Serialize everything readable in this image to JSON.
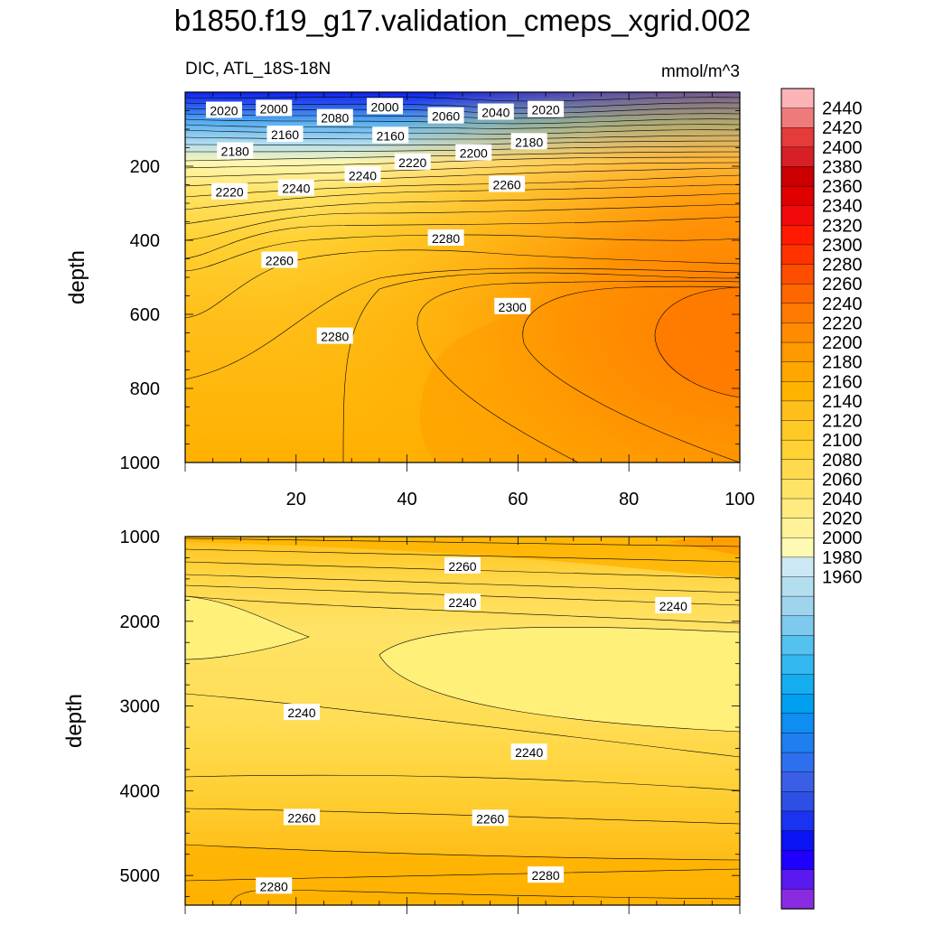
{
  "chart_data": {
    "type": "contour",
    "title": "b1850.f19_g17.validation_cmeps_xgrid.002",
    "variable_label": "DIC, ATL_18S-18N",
    "units_label": "mmol/m^3",
    "panels": [
      {
        "name": "upper",
        "ylabel": "depth",
        "xlabel": "",
        "xlim": [
          0,
          100
        ],
        "ylim": [
          1000,
          0
        ],
        "x_ticks": [
          "20",
          "40",
          "60",
          "80",
          "100"
        ],
        "y_ticks": [
          "200",
          "400",
          "600",
          "800",
          "1000"
        ],
        "contour_labels": [
          {
            "text": "2020",
            "x": 7,
            "y": 50
          },
          {
            "text": "2000",
            "x": 16,
            "y": 45
          },
          {
            "text": "2080",
            "x": 27,
            "y": 70
          },
          {
            "text": "2000",
            "x": 36,
            "y": 40
          },
          {
            "text": "2060",
            "x": 47,
            "y": 65
          },
          {
            "text": "2040",
            "x": 56,
            "y": 55
          },
          {
            "text": "2020",
            "x": 65,
            "y": 48
          },
          {
            "text": "2160",
            "x": 18,
            "y": 115
          },
          {
            "text": "2160",
            "x": 37,
            "y": 118
          },
          {
            "text": "2180",
            "x": 9,
            "y": 160
          },
          {
            "text": "2180",
            "x": 62,
            "y": 135
          },
          {
            "text": "2200",
            "x": 52,
            "y": 165
          },
          {
            "text": "2220",
            "x": 41,
            "y": 190
          },
          {
            "text": "2240",
            "x": 32,
            "y": 225
          },
          {
            "text": "2240",
            "x": 20,
            "y": 260
          },
          {
            "text": "2220",
            "x": 8,
            "y": 270
          },
          {
            "text": "2260",
            "x": 58,
            "y": 250
          },
          {
            "text": "2280",
            "x": 47,
            "y": 395
          },
          {
            "text": "2260",
            "x": 17,
            "y": 455
          },
          {
            "text": "2300",
            "x": 59,
            "y": 580
          },
          {
            "text": "2280",
            "x": 27,
            "y": 660
          }
        ]
      },
      {
        "name": "lower",
        "ylabel": "depth",
        "xlabel": "",
        "xlim": [
          0,
          100
        ],
        "ylim": [
          5350,
          1000
        ],
        "y_ticks": [
          "1000",
          "2000",
          "3000",
          "4000",
          "5000"
        ],
        "contour_labels": [
          {
            "text": "2260",
            "x": 50,
            "y": 1350
          },
          {
            "text": "2240",
            "x": 50,
            "y": 1780
          },
          {
            "text": "2240",
            "x": 88,
            "y": 1820
          },
          {
            "text": "2240",
            "x": 21,
            "y": 3080
          },
          {
            "text": "2240",
            "x": 62,
            "y": 3550
          },
          {
            "text": "2260",
            "x": 21,
            "y": 4320
          },
          {
            "text": "2260",
            "x": 55,
            "y": 4330
          },
          {
            "text": "2280",
            "x": 16,
            "y": 5130
          },
          {
            "text": "2280",
            "x": 65,
            "y": 5000
          }
        ]
      }
    ],
    "colorbar": {
      "tick_labels": [
        "2440",
        "2420",
        "2400",
        "2380",
        "2360",
        "2340",
        "2320",
        "2300",
        "2280",
        "2260",
        "2240",
        "2220",
        "2200",
        "2180",
        "2160",
        "2140",
        "2120",
        "2100",
        "2080",
        "2060",
        "2040",
        "2020",
        "2000",
        "1980",
        "1960"
      ],
      "colors_top_to_bottom": [
        "#fbb3b6",
        "#ef7a7a",
        "#e63b3b",
        "#d91f26",
        "#cc0000",
        "#e00000",
        "#f00a0a",
        "#ff1a00",
        "#ff3300",
        "#ff4d00",
        "#ff6600",
        "#ff7a00",
        "#ff8c00",
        "#ff9900",
        "#ffa600",
        "#ffb300",
        "#ffbf1a",
        "#ffc926",
        "#ffd133",
        "#ffda4d",
        "#ffe366",
        "#ffeb80",
        "#fff299",
        "#fffab3",
        "#cce8f4",
        "#b3def0",
        "#9fd4ee",
        "#7ec9ee",
        "#55c1ef",
        "#33b8f0",
        "#14aef0",
        "#009ff0",
        "#0d8ef0",
        "#1f7ff0",
        "#2e6ff0",
        "#3a5fe6",
        "#2e4fe6",
        "#1a33f0",
        "#0a14f5",
        "#1f00ff",
        "#5a19f0",
        "#8a2be2"
      ]
    },
    "colors": {
      "upper_surface": "#1a33f0",
      "upper_mid": "#ffc926",
      "upper_core": "#ff7a00",
      "lower_base": "#ffc926",
      "lower_light": "#fff07a",
      "lower_dark": "#ffa600"
    }
  }
}
